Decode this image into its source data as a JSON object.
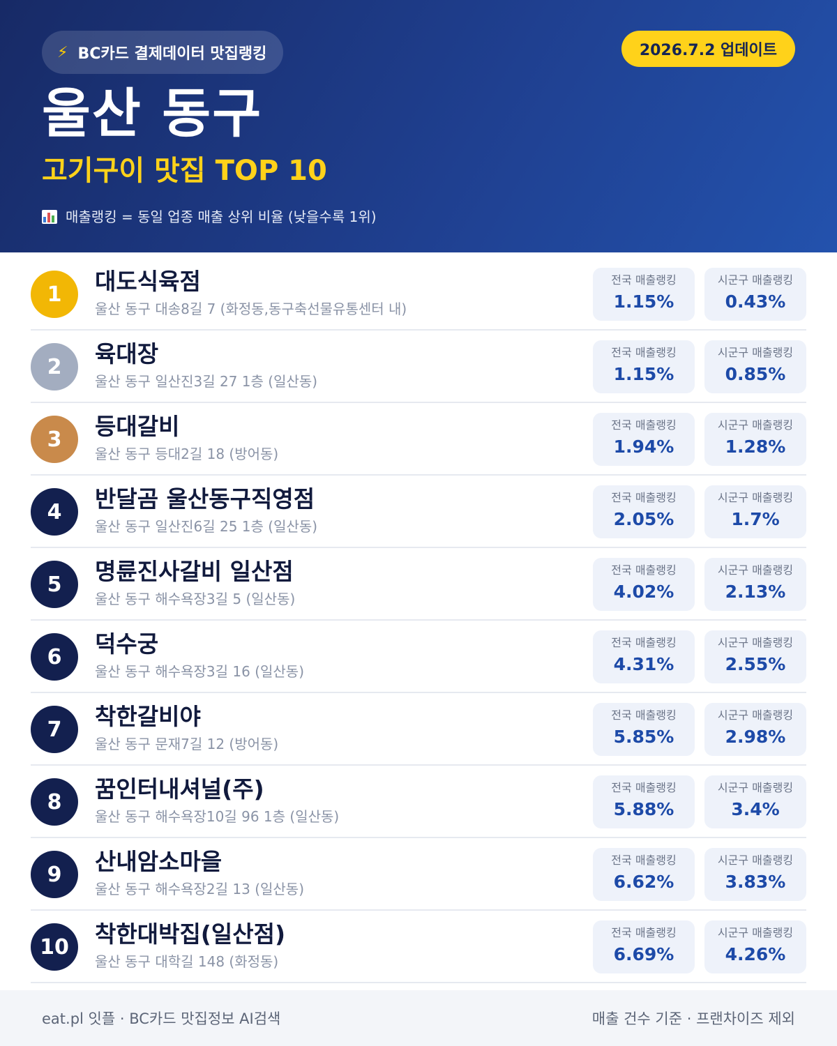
{
  "header": {
    "brand": "BC카드 결제데이터 맛집랭킹",
    "bolt_icon": "⚡",
    "update": "2026.7.2 업데이트",
    "region": "울산 동구",
    "category": "고기구이 맛집 TOP 10",
    "legend": "매출랭킹 = 동일 업종 매출 상위 비율 (낮을수록 1위)",
    "legend_icon": "bar-chart-icon"
  },
  "labels": {
    "national": "전국 매출랭킹",
    "local": "시군구 매출랭킹"
  },
  "colors": {
    "header_bg": "#1f3f8f",
    "accent_yellow": "#ffd21a",
    "rank_gold": "#f2b705",
    "rank_silver": "#a3adc0",
    "rank_bronze": "#c98a4b",
    "rank_default": "#13204f",
    "value_blue": "#1d4aa8"
  },
  "restaurants": [
    {
      "rank": "1",
      "name": "대도식육점",
      "address": "울산 동구 대송8길 7 (화정동,동구축선물유통센터 내)",
      "national": "1.15%",
      "local": "0.43%"
    },
    {
      "rank": "2",
      "name": "육대장",
      "address": "울산 동구 일산진3길 27 1층 (일산동)",
      "national": "1.15%",
      "local": "0.85%"
    },
    {
      "rank": "3",
      "name": "등대갈비",
      "address": "울산 동구 등대2길 18 (방어동)",
      "national": "1.94%",
      "local": "1.28%"
    },
    {
      "rank": "4",
      "name": "반달곰 울산동구직영점",
      "address": "울산 동구 일산진6길 25 1층 (일산동)",
      "national": "2.05%",
      "local": "1.7%"
    },
    {
      "rank": "5",
      "name": "명륜진사갈비 일산점",
      "address": "울산 동구 해수욕장3길 5 (일산동)",
      "national": "4.02%",
      "local": "2.13%"
    },
    {
      "rank": "6",
      "name": "덕수궁",
      "address": "울산 동구 해수욕장3길 16 (일산동)",
      "national": "4.31%",
      "local": "2.55%"
    },
    {
      "rank": "7",
      "name": "착한갈비야",
      "address": "울산 동구 문재7길 12 (방어동)",
      "national": "5.85%",
      "local": "2.98%"
    },
    {
      "rank": "8",
      "name": "꿈인터내셔널(주)",
      "address": "울산 동구 해수욕장10길 96 1층 (일산동)",
      "national": "5.88%",
      "local": "3.4%"
    },
    {
      "rank": "9",
      "name": "산내암소마을",
      "address": "울산 동구 해수욕장2길 13 (일산동)",
      "national": "6.62%",
      "local": "3.83%"
    },
    {
      "rank": "10",
      "name": "착한대박집(일산점)",
      "address": "울산 동구 대학길 148 (화정동)",
      "national": "6.69%",
      "local": "4.26%"
    }
  ],
  "footer": {
    "left": "eat.pl 잇플 · BC카드 맛집정보 AI검색",
    "right": "매출 건수 기준 · 프랜차이즈 제외"
  }
}
